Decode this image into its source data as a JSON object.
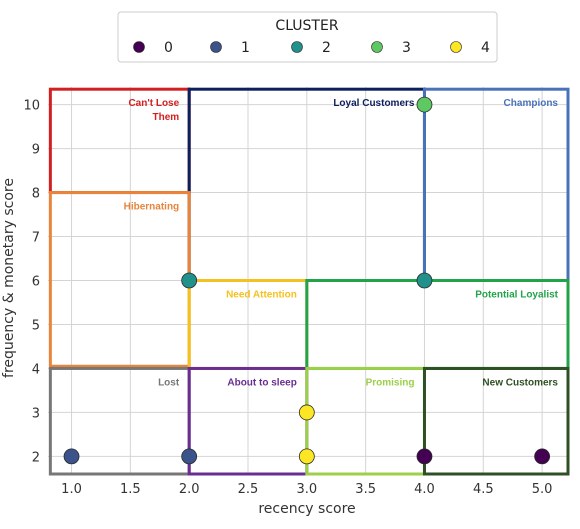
{
  "chart_data": {
    "type": "scatter",
    "xlabel": "recency score",
    "ylabel": "frequency & monetary score",
    "xlim": [
      0.8,
      5.22
    ],
    "ylim": [
      1.6,
      10.4
    ],
    "x_ticks": [
      1.0,
      1.5,
      2.0,
      2.5,
      3.0,
      3.5,
      4.0,
      4.5,
      5.0
    ],
    "x_tick_labels": [
      "1.0",
      "1.5",
      "2.0",
      "2.5",
      "3.0",
      "3.5",
      "4.0",
      "4.5",
      "5.0"
    ],
    "y_ticks": [
      2,
      3,
      4,
      5,
      6,
      7,
      8,
      9,
      10
    ],
    "y_tick_labels": [
      "2",
      "3",
      "4",
      "5",
      "6",
      "7",
      "8",
      "9",
      "10"
    ],
    "grid": true,
    "legend": {
      "title": "CLUSTER",
      "placement": "top-center",
      "entries": [
        {
          "label": "0",
          "color": "#440154"
        },
        {
          "label": "1",
          "color": "#3b528b"
        },
        {
          "label": "2",
          "color": "#21918c"
        },
        {
          "label": "3",
          "color": "#5ec962"
        },
        {
          "label": "4",
          "color": "#fde725"
        }
      ]
    },
    "points": [
      {
        "x": 1.0,
        "y": 2,
        "cluster": 1
      },
      {
        "x": 2.0,
        "y": 2,
        "cluster": 1
      },
      {
        "x": 2.0,
        "y": 6,
        "cluster": 2
      },
      {
        "x": 3.0,
        "y": 3,
        "cluster": 4
      },
      {
        "x": 3.0,
        "y": 2,
        "cluster": 4
      },
      {
        "x": 4.0,
        "y": 10,
        "cluster": 3
      },
      {
        "x": 4.0,
        "y": 6,
        "cluster": 2
      },
      {
        "x": 4.0,
        "y": 2,
        "cluster": 0
      },
      {
        "x": 5.0,
        "y": 2,
        "cluster": 0
      }
    ],
    "segments": [
      {
        "label": "Can't Lose Them",
        "lines": [
          "Can't Lose",
          "Them"
        ],
        "color": "#d21f1f",
        "x0": 0.82,
        "x1": 2.0,
        "y0": 8,
        "y1": 10.35
      },
      {
        "label": "Loyal Customers",
        "lines": [
          "Loyal Customers"
        ],
        "color": "#0d1f5c",
        "x0": 2.0,
        "x1": 4.0,
        "y0": 6,
        "y1": 10.35
      },
      {
        "label": "Champions",
        "lines": [
          "Champions"
        ],
        "color": "#4a72b8",
        "x0": 4.0,
        "x1": 5.22,
        "y0": 6,
        "y1": 10.35
      },
      {
        "label": "Hibernating",
        "lines": [
          "Hibernating"
        ],
        "color": "#e8843b",
        "x0": 0.82,
        "x1": 2.0,
        "y0": 4.05,
        "y1": 8
      },
      {
        "label": "Need Attention",
        "lines": [
          "Need Attention"
        ],
        "color": "#f5c11e",
        "x0": 2.0,
        "x1": 3.0,
        "y0": 4,
        "y1": 6
      },
      {
        "label": "Potential Loyalist",
        "lines": [
          "Potential Loyalist"
        ],
        "color": "#22a34a",
        "x0": 3.0,
        "x1": 5.22,
        "y0": 4,
        "y1": 6
      },
      {
        "label": "Lost",
        "lines": [
          "Lost"
        ],
        "color": "#777777",
        "x0": 0.82,
        "x1": 2.0,
        "y0": 1.6,
        "y1": 4
      },
      {
        "label": "About to sleep",
        "lines": [
          "About to sleep"
        ],
        "color": "#6a2d91",
        "x0": 2.0,
        "x1": 3.0,
        "y0": 1.6,
        "y1": 4
      },
      {
        "label": "Promising",
        "lines": [
          "Promising"
        ],
        "color": "#9ccf4a",
        "x0": 3.0,
        "x1": 4.0,
        "y0": 1.6,
        "y1": 4
      },
      {
        "label": "New Customers",
        "lines": [
          "New Customers"
        ],
        "color": "#2f4f24",
        "x0": 4.0,
        "x1": 5.22,
        "y0": 1.6,
        "y1": 4
      }
    ]
  }
}
